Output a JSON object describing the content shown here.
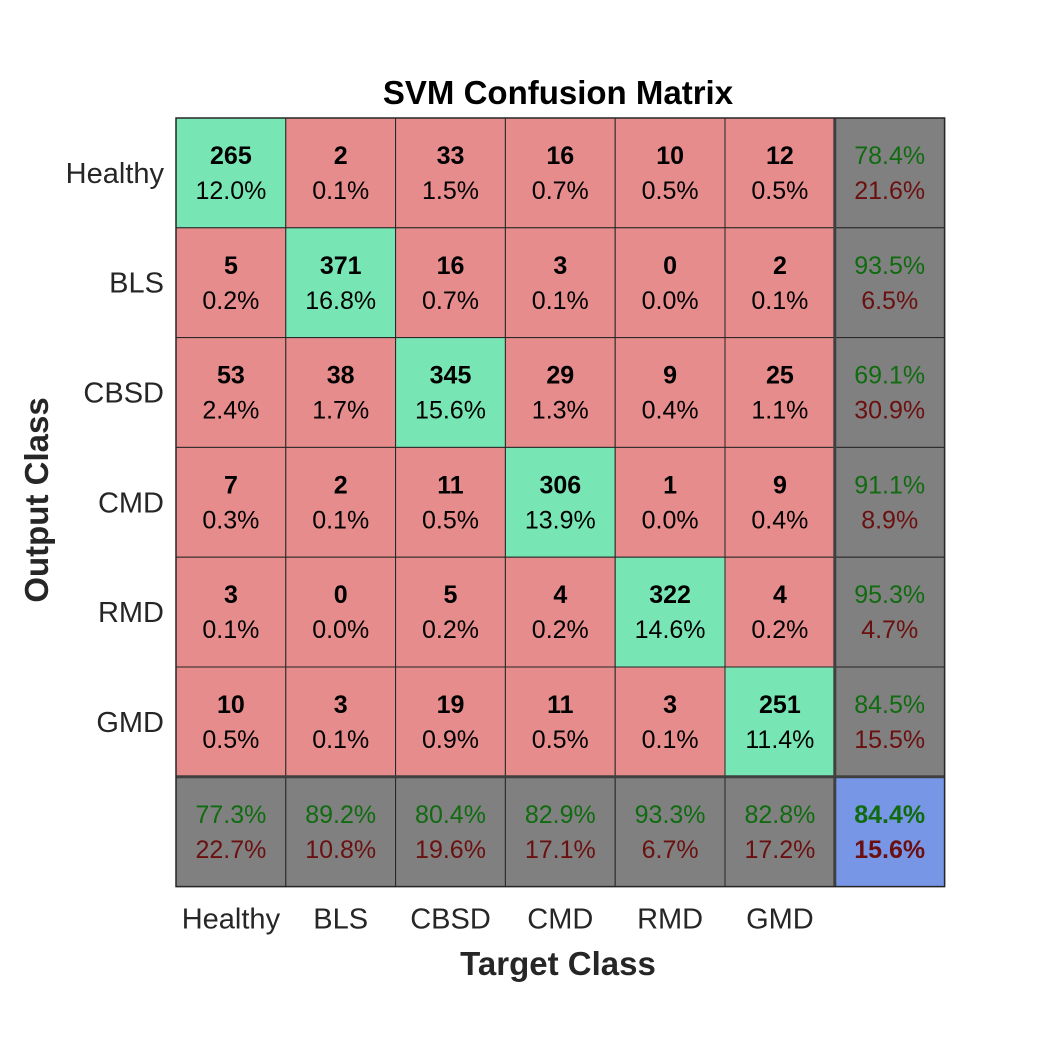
{
  "chart_data": {
    "type": "heatmap",
    "title": "SVM Confusion Matrix",
    "xlabel": "Target Class",
    "ylabel": "Output Class",
    "classes": [
      "Healthy",
      "BLS",
      "CBSD",
      "CMD",
      "RMD",
      "GMD"
    ],
    "counts": [
      [
        265,
        2,
        33,
        16,
        10,
        12
      ],
      [
        5,
        371,
        16,
        3,
        0,
        2
      ],
      [
        53,
        38,
        345,
        29,
        9,
        25
      ],
      [
        7,
        2,
        11,
        306,
        1,
        9
      ],
      [
        3,
        0,
        5,
        4,
        322,
        4
      ],
      [
        10,
        3,
        19,
        11,
        3,
        251
      ]
    ],
    "percents": [
      [
        "12.0%",
        "0.1%",
        "1.5%",
        "0.7%",
        "0.5%",
        "0.5%"
      ],
      [
        "0.2%",
        "16.8%",
        "0.7%",
        "0.1%",
        "0.0%",
        "0.1%"
      ],
      [
        "2.4%",
        "1.7%",
        "15.6%",
        "1.3%",
        "0.4%",
        "1.1%"
      ],
      [
        "0.3%",
        "0.1%",
        "0.5%",
        "13.9%",
        "0.0%",
        "0.4%"
      ],
      [
        "0.1%",
        "0.0%",
        "0.2%",
        "0.2%",
        "14.6%",
        "0.2%"
      ],
      [
        "0.5%",
        "0.1%",
        "0.9%",
        "0.5%",
        "0.1%",
        "11.4%"
      ]
    ],
    "row_summary": [
      [
        "78.4%",
        "21.6%"
      ],
      [
        "93.5%",
        "6.5%"
      ],
      [
        "69.1%",
        "30.9%"
      ],
      [
        "91.1%",
        "8.9%"
      ],
      [
        "95.3%",
        "4.7%"
      ],
      [
        "84.5%",
        "15.5%"
      ]
    ],
    "col_summary": [
      [
        "77.3%",
        "22.7%"
      ],
      [
        "89.2%",
        "10.8%"
      ],
      [
        "80.4%",
        "19.6%"
      ],
      [
        "82.9%",
        "17.1%"
      ],
      [
        "93.3%",
        "6.7%"
      ],
      [
        "82.8%",
        "17.2%"
      ]
    ],
    "overall": [
      "84.4%",
      "15.6%"
    ],
    "colors": {
      "diagonal": "#78e6b4",
      "off_diagonal": "#e68c8c",
      "summary": "#808080",
      "overall": "#7896e6",
      "good_text": "#106b10",
      "bad_text": "#6b1010",
      "grid": "#262626"
    }
  }
}
